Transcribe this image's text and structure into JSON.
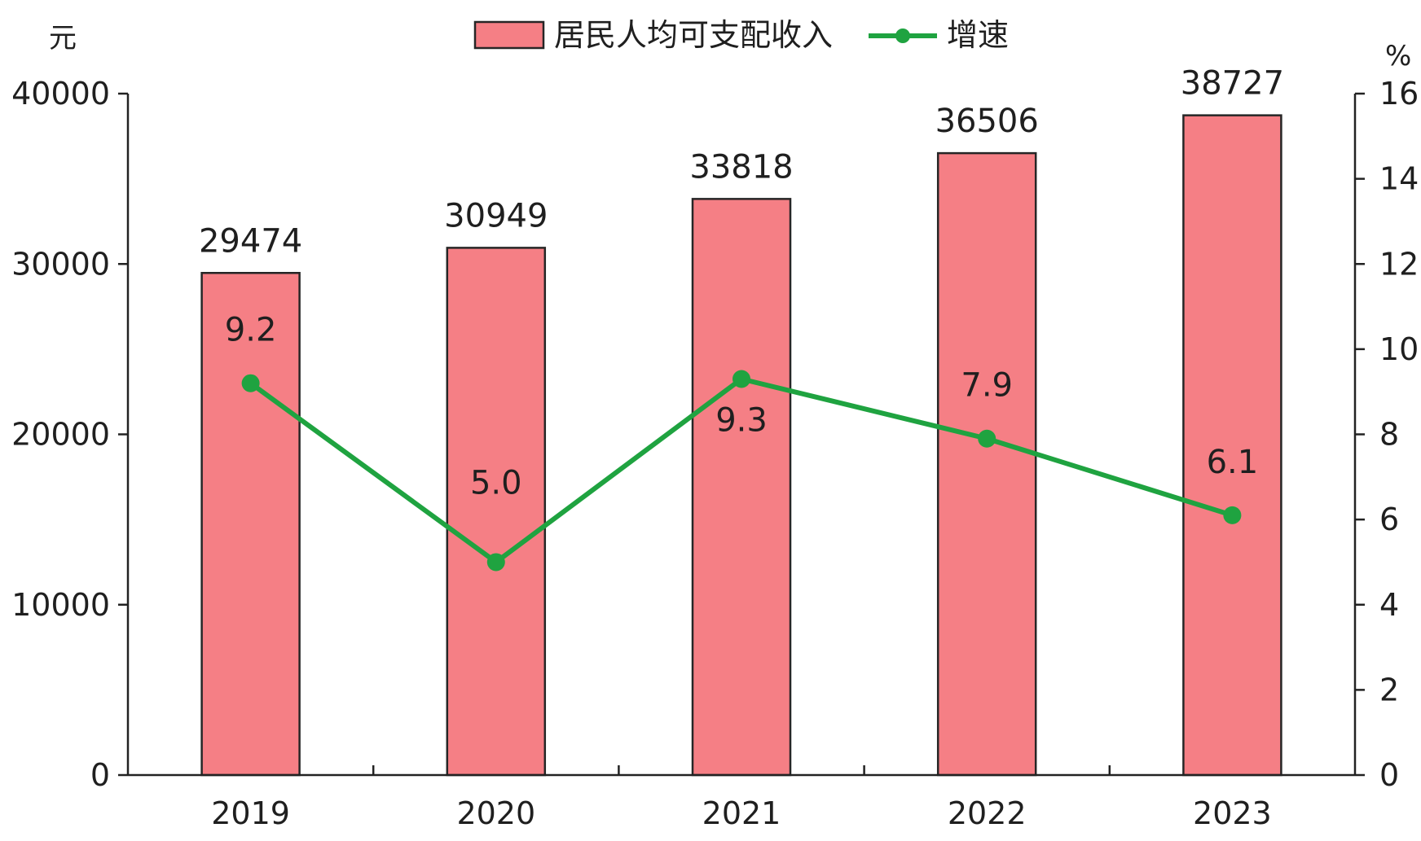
{
  "chart_data": {
    "type": "bar",
    "categories": [
      "2019",
      "2020",
      "2021",
      "2022",
      "2023"
    ],
    "series": [
      {
        "name": "居民人均可支配收入",
        "type": "bar",
        "axis": "left",
        "values": [
          29474,
          30949,
          33818,
          36506,
          38727
        ],
        "labels": [
          "29474",
          "30949",
          "33818",
          "36506",
          "38727"
        ]
      },
      {
        "name": "增速",
        "type": "line",
        "axis": "right",
        "values": [
          9.2,
          5.0,
          9.3,
          7.9,
          6.1
        ],
        "labels": [
          "9.2",
          "5.0",
          "9.3",
          "7.9",
          "6.1"
        ]
      }
    ],
    "left_axis": {
      "unit": "元",
      "ylim": [
        0,
        40000
      ],
      "ticks": [
        "0",
        "10000",
        "20000",
        "30000",
        "40000"
      ]
    },
    "right_axis": {
      "unit": "%",
      "ylim": [
        0,
        16
      ],
      "ticks": [
        "0",
        "2",
        "4",
        "6",
        "8",
        "10",
        "12",
        "14",
        "16"
      ]
    },
    "legend_position": "top-center",
    "grid": false,
    "colors": {
      "bar_fill": "#f57f85",
      "bar_stroke": "#262626",
      "line": "#1fa340",
      "axis": "#222222"
    }
  }
}
